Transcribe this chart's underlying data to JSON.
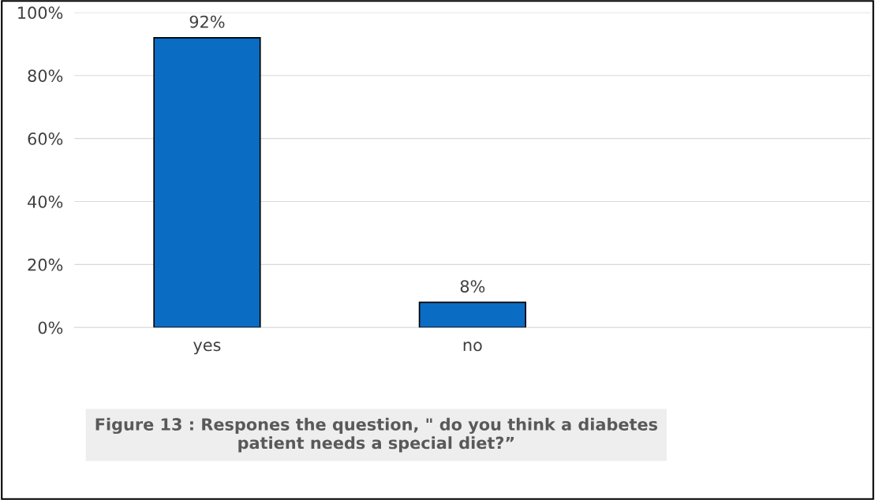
{
  "chart_data": {
    "type": "bar",
    "categories": [
      "yes",
      "no",
      null
    ],
    "values": [
      92,
      8,
      null
    ],
    "value_labels": [
      "92%",
      "8%",
      null
    ],
    "color": "#0b6cc4",
    "ylim": [
      0,
      100
    ],
    "yticks": [
      {
        "value": 0,
        "label": "0%"
      },
      {
        "value": 20,
        "label": "20%"
      },
      {
        "value": 40,
        "label": "40%"
      },
      {
        "value": 60,
        "label": "60%"
      },
      {
        "value": 80,
        "label": "80%"
      },
      {
        "value": 100,
        "label": "100%"
      }
    ],
    "grid": "y",
    "annotations": [
      "Figure 13 : Respones the question, \" do you think a diabetes\npatient needs a special diet?”"
    ]
  }
}
